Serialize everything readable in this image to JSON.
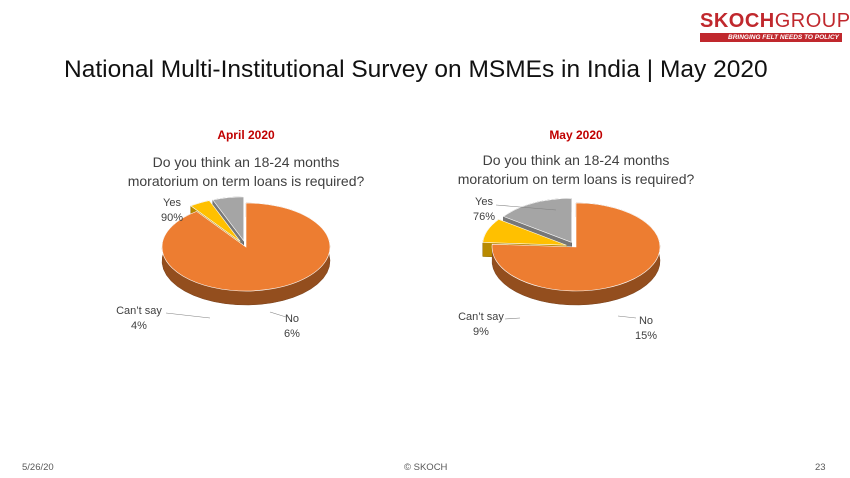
{
  "logo": {
    "brand": "SKOCH",
    "group": "GROUP",
    "tagline": "BRINGING FELT NEEDS TO POLICY"
  },
  "slide": {
    "title": "National Multi-Institutional Survey on MSMEs in India | May 2020"
  },
  "footer": {
    "date": "5/26/20",
    "copyright": "© SKOCH",
    "page_number": "23"
  },
  "colors": {
    "yes": "#ED7D31",
    "cant_say": "#FFC000",
    "no": "#A5A5A5",
    "period_title": "#C00000",
    "brand": "#C0282D"
  },
  "chart_data": [
    {
      "type": "pie",
      "period": "April 2020",
      "question_lines": [
        "Do you think an 18-24 months",
        "moratorium on term loans is required?"
      ],
      "slices": [
        {
          "name": "Yes",
          "value": 90,
          "label": "90%",
          "exploded": false
        },
        {
          "name": "Can’t say",
          "value": 4,
          "label": "4%",
          "exploded": true
        },
        {
          "name": "No",
          "value": 6,
          "label": "6%",
          "exploded": true
        }
      ]
    },
    {
      "type": "pie",
      "period": "May 2020",
      "question_lines": [
        "Do you think an 18-24 months",
        "moratorium on term loans is required?"
      ],
      "slices": [
        {
          "name": "Yes",
          "value": 76,
          "label": "76%",
          "exploded": false
        },
        {
          "name": "Can’t say",
          "value": 9,
          "label": "9%",
          "exploded": true
        },
        {
          "name": "No",
          "value": 15,
          "label": "15%",
          "exploded": true
        }
      ]
    }
  ]
}
